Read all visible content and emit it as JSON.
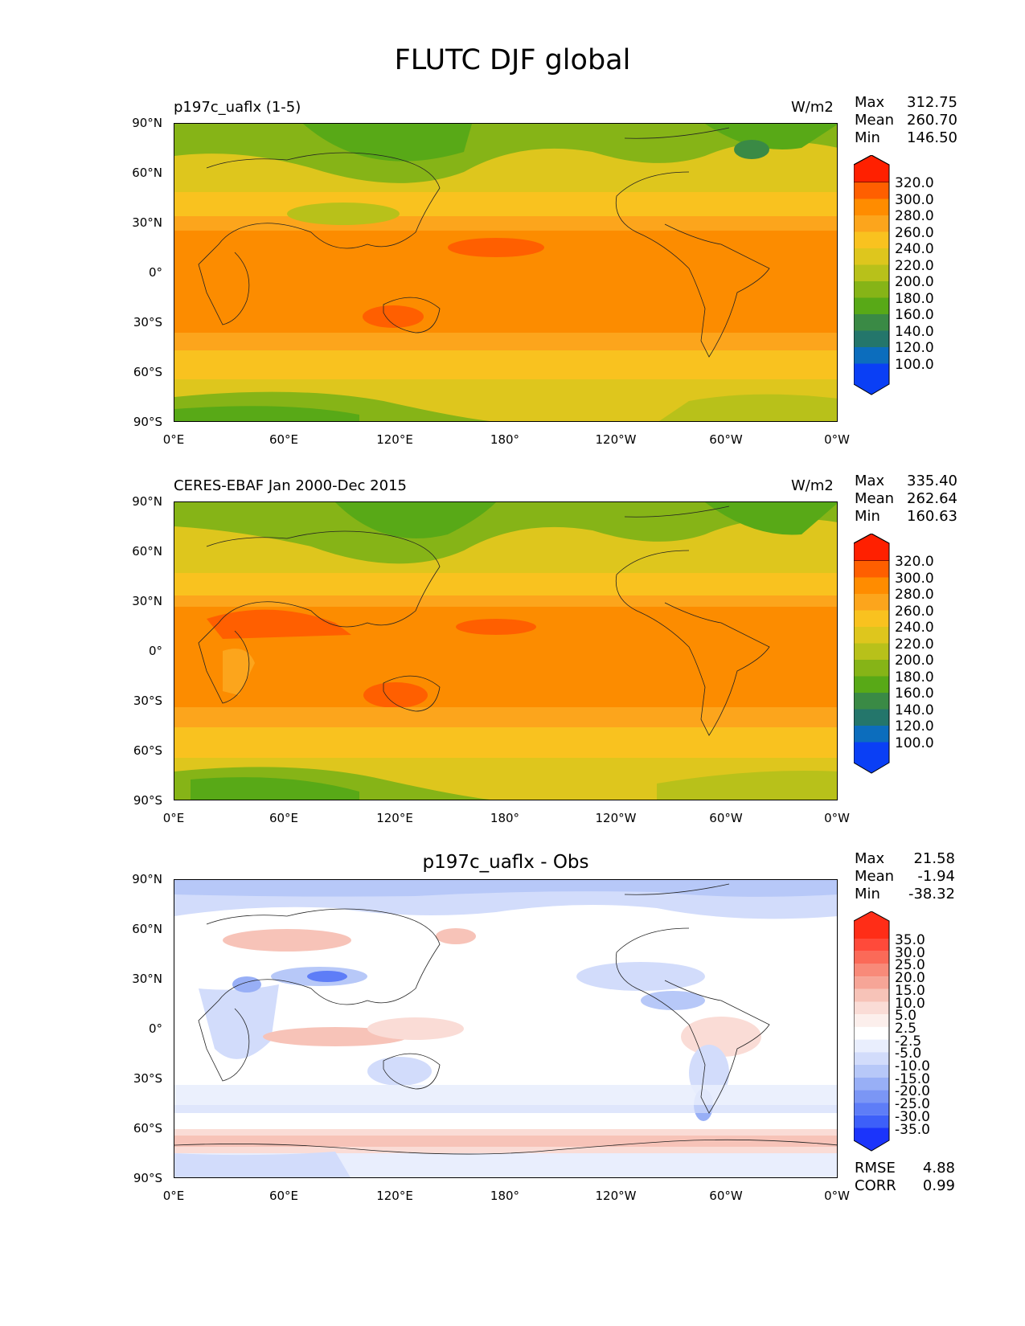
{
  "figure_title": "FLUTC DJF global",
  "axes": {
    "y_labels": [
      "90°N",
      "60°N",
      "30°N",
      "0°",
      "30°S",
      "60°S",
      "90°S"
    ],
    "x_labels": [
      "0°E",
      "60°E",
      "120°E",
      "180°",
      "120°W",
      "60°W",
      "0°W"
    ]
  },
  "panels": [
    {
      "title_left": "p197c_uaflx (1-5)",
      "title_center": "",
      "units": "W/m2",
      "stats": {
        "max_label": "Max",
        "max": "312.75",
        "mean_label": "Mean",
        "mean": "260.70",
        "min_label": "Min",
        "min": "146.50"
      },
      "colorbar": [
        "320.0",
        "300.0",
        "280.0",
        "260.0",
        "240.0",
        "220.0",
        "200.0",
        "180.0",
        "160.0",
        "140.0",
        "120.0",
        "100.0"
      ],
      "colors": [
        "#ff2000",
        "#ff5f00",
        "#ff8c00",
        "#fca51c",
        "#f9c21f",
        "#dec61d",
        "#b8c11a",
        "#86b417",
        "#58a917",
        "#3a8a45",
        "#24766b",
        "#0c6dbd",
        "#0a3ff5"
      ]
    },
    {
      "title_left": "CERES-EBAF Jan 2000-Dec 2015",
      "title_center": "",
      "units": "W/m2",
      "stats": {
        "max_label": "Max",
        "max": "335.40",
        "mean_label": "Mean",
        "mean": "262.64",
        "min_label": "Min",
        "min": "160.63"
      },
      "colorbar": [
        "320.0",
        "300.0",
        "280.0",
        "260.0",
        "240.0",
        "220.0",
        "200.0",
        "180.0",
        "160.0",
        "140.0",
        "120.0",
        "100.0"
      ],
      "colors": [
        "#ff2000",
        "#ff5f00",
        "#ff8c00",
        "#fca51c",
        "#f9c21f",
        "#dec61d",
        "#b8c11a",
        "#86b417",
        "#58a917",
        "#3a8a45",
        "#24766b",
        "#0c6dbd",
        "#0a3ff5"
      ]
    },
    {
      "title_left": "",
      "title_center": "p197c_uaflx - Obs",
      "units": "",
      "stats": {
        "max_label": "Max",
        "max": "21.58",
        "mean_label": "Mean",
        "mean": "-1.94",
        "min_label": "Min",
        "min": "-38.32"
      },
      "colorbar": [
        "35.0",
        "30.0",
        "25.0",
        "20.0",
        "15.0",
        "10.0",
        "5.0",
        "2.5",
        "-2.5",
        "-5.0",
        "-10.0",
        "-15.0",
        "-20.0",
        "-25.0",
        "-30.0",
        "-35.0"
      ],
      "colors": [
        "#ff2d17",
        "#ff4a3a",
        "#fb6a58",
        "#f88a79",
        "#f6a597",
        "#f7c3b8",
        "#fadcd6",
        "#fcefec",
        "#ffffff",
        "#e9eefd",
        "#d2dcfb",
        "#b7c8f8",
        "#98aff6",
        "#7b96f5",
        "#5e7df7",
        "#3d5ff9",
        "#1b34fb"
      ],
      "rmse_label": "RMSE",
      "rmse": "4.88",
      "corr_label": "CORR",
      "corr": "0.99"
    }
  ]
}
